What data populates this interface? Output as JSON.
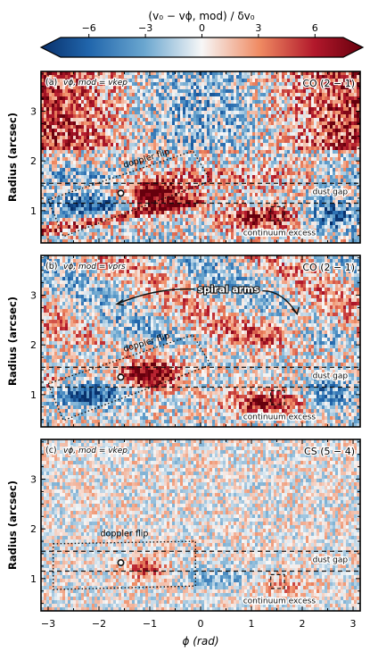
{
  "colorbar": {
    "label": "(v₀ − vϕ, mod) / δv₀",
    "ticks": [
      -6,
      -3,
      0,
      3,
      6
    ],
    "range": [
      -7.5,
      7.5
    ],
    "colormap": "RdBu_r",
    "low_color": "#08306b",
    "mid_color": "#ffffff",
    "high_color": "#67000d"
  },
  "chart_data": {
    "type": "heatmap",
    "xlabel": "ϕ (rad)",
    "ylabel": "Radius (arcsec)",
    "xlim": [
      -3.14,
      3.14
    ],
    "ylim": [
      0.35,
      3.8
    ],
    "xticks": [
      -3,
      -2,
      -1,
      0,
      1,
      2,
      3
    ],
    "yticks": [
      1,
      2,
      3
    ],
    "panels": [
      {
        "tag": "(a)",
        "model_label": "vϕ, mod = vkep",
        "line_label": "CO (2 − 1)",
        "dashed_radii": [
          1.15,
          1.55
        ],
        "dust_gap_label": "dust gap",
        "continuum_label": "continuum excess",
        "continuum_box": {
          "phi": [
            1.38,
            1.65
          ],
          "r": [
            0.8,
            1.08
          ]
        },
        "marker": {
          "phi": -1.57,
          "r": 1.35
        },
        "doppler_label": "doppler flip",
        "doppler_box_corners": [
          [
            -3.0,
            1.22
          ],
          [
            -0.15,
            2.2
          ],
          [
            0.2,
            1.6
          ],
          [
            -2.7,
            0.48
          ]
        ],
        "spiral_label": ""
      },
      {
        "tag": "(b)",
        "model_label": "vϕ, mod = vprs",
        "line_label": "CO (2 − 1)",
        "dashed_radii": [
          1.15,
          1.55
        ],
        "dust_gap_label": "dust gap",
        "continuum_label": "continuum excess",
        "continuum_box": {
          "phi": [
            1.38,
            1.65
          ],
          "r": [
            0.8,
            1.08
          ]
        },
        "marker": {
          "phi": -1.57,
          "r": 1.35
        },
        "doppler_label": "doppler flip",
        "doppler_box_corners": [
          [
            -3.0,
            1.22
          ],
          [
            -0.15,
            2.2
          ],
          [
            0.2,
            1.6
          ],
          [
            -2.7,
            0.48
          ]
        ],
        "spiral_label": "spiral arms"
      },
      {
        "tag": "(c)",
        "model_label": "vϕ, mod = vkep",
        "line_label": "CS (5 − 4)",
        "dashed_radii": [
          1.15,
          1.55
        ],
        "dust_gap_label": "dust gap",
        "continuum_label": "continuum excess",
        "continuum_box": {
          "phi": [
            1.38,
            1.65
          ],
          "r": [
            0.8,
            1.08
          ]
        },
        "marker": {
          "phi": -1.57,
          "r": 1.32
        },
        "doppler_label": "doppler flip",
        "doppler_box_corners": [
          [
            -2.9,
            1.7
          ],
          [
            -0.1,
            1.75
          ],
          [
            -0.1,
            0.85
          ],
          [
            -2.9,
            0.78
          ]
        ],
        "spiral_label": ""
      }
    ]
  }
}
